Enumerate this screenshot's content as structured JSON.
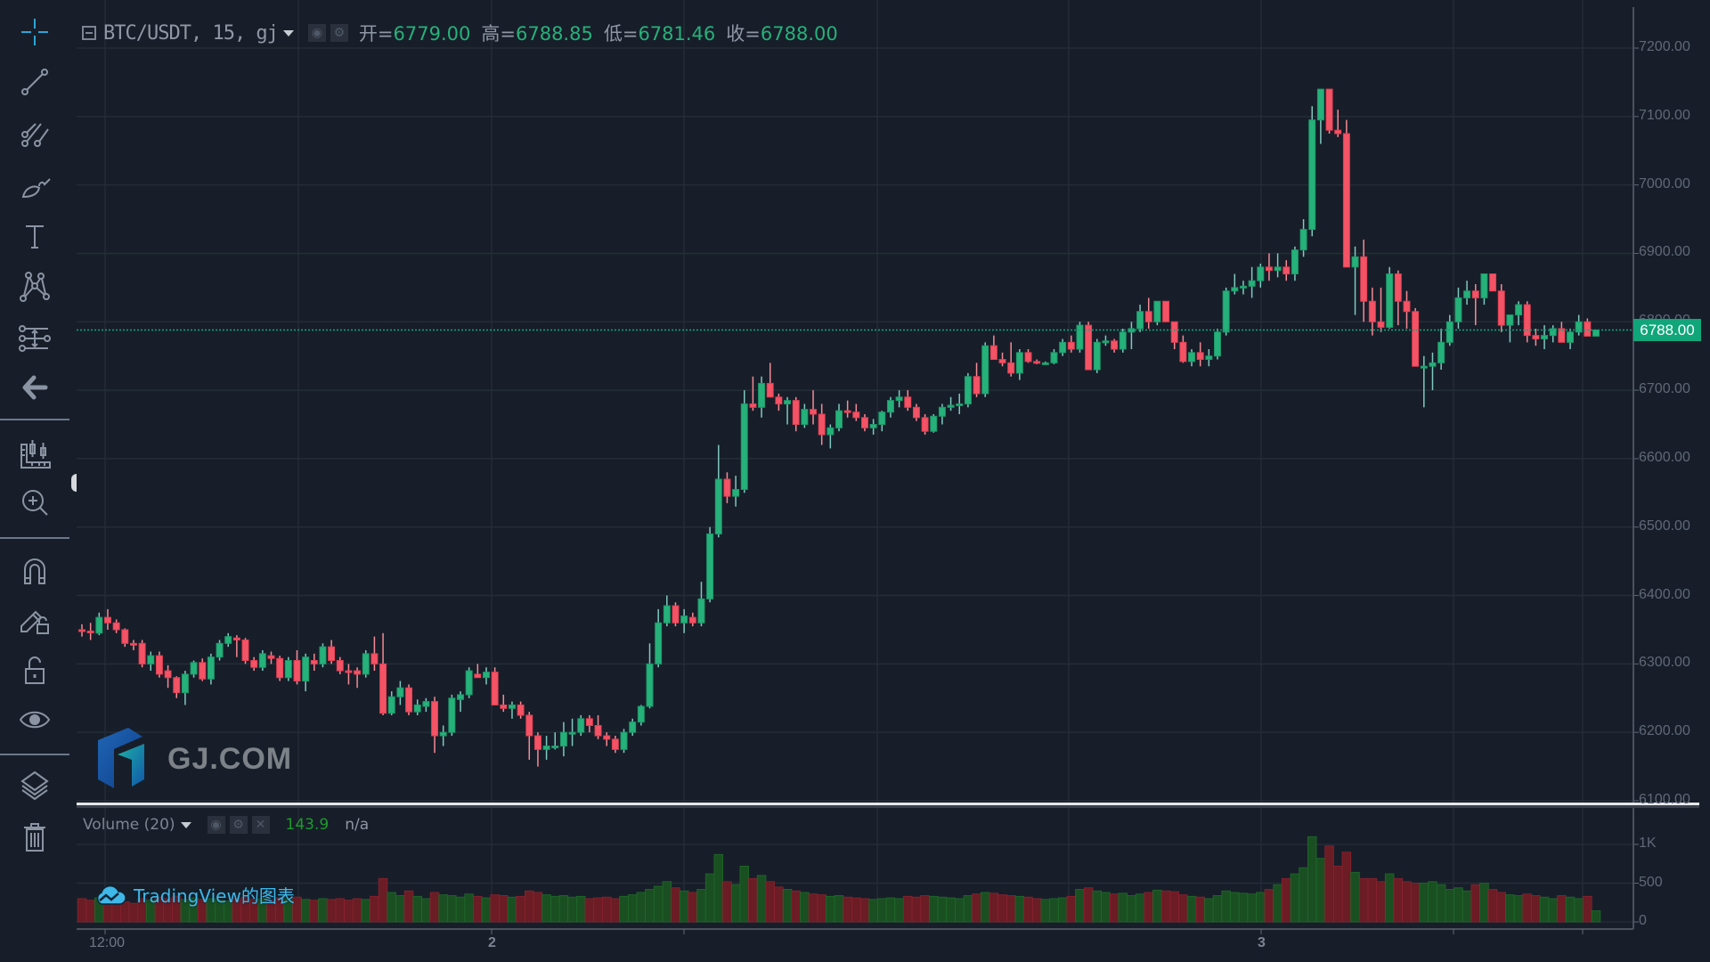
{
  "legend": {
    "symbol": "BTC/USDT, 15, gj",
    "ohlc": [
      {
        "key": "开=",
        "value": "6779.00"
      },
      {
        "key": "高=",
        "value": "6788.85"
      },
      {
        "key": "低=",
        "value": "6781.46"
      },
      {
        "key": "收=",
        "value": "6788.00"
      }
    ]
  },
  "volume_legend": {
    "name": "Volume (20)",
    "value": "143.9",
    "ma": "n/a"
  },
  "current_price": "6788.00",
  "watermarks": {
    "brand": "GJ.COM",
    "tradingview": "TradingView的图表"
  },
  "toolbar": {
    "items": [
      "crosshair",
      "trend-line",
      "pitchfork",
      "brush",
      "text",
      "pattern",
      "measure",
      "back-arrow",
      "chart-ruler",
      "zoom-in",
      "magnet",
      "lock-drawing",
      "unlock",
      "eye",
      "layers",
      "trash"
    ]
  },
  "colors": {
    "background": "#171e29",
    "up": "#26b17a",
    "down": "#f45366",
    "vol_up": "#1a4f22",
    "vol_down": "#6b1c24",
    "grid": "#252c38",
    "current_price": "#11a67a"
  },
  "chart_data": {
    "type": "candlestick",
    "title": "BTC/USDT, 15, gj",
    "price_axis": {
      "ticks": [
        "7200.00",
        "7100.00",
        "7000.00",
        "6900.00",
        "6800.00",
        "6700.00",
        "6600.00",
        "6500.00",
        "6400.00",
        "6300.00",
        "6200.00",
        "6100.00"
      ],
      "range": [
        6100,
        7200
      ]
    },
    "volume_axis": {
      "ticks": [
        "1K",
        "500",
        "0"
      ],
      "range": [
        0,
        1000
      ]
    },
    "time_axis": {
      "ticks": [
        "12:00",
        "2",
        "3"
      ]
    },
    "last": {
      "open": 6779.0,
      "high": 6788.85,
      "low": 6781.46,
      "close": 6788.0,
      "volume": 143.9
    },
    "candles": [
      [
        6350,
        6358,
        6340,
        6348,
        300
      ],
      [
        6348,
        6360,
        6335,
        6347,
        280
      ],
      [
        6345,
        6375,
        6342,
        6368,
        310
      ],
      [
        6368,
        6380,
        6350,
        6360,
        330
      ],
      [
        6360,
        6365,
        6345,
        6350,
        290
      ],
      [
        6350,
        6352,
        6325,
        6330,
        260
      ],
      [
        6330,
        6335,
        6320,
        6328,
        240
      ],
      [
        6330,
        6335,
        6295,
        6300,
        300
      ],
      [
        6300,
        6318,
        6290,
        6312,
        280
      ],
      [
        6312,
        6318,
        6280,
        6285,
        320
      ],
      [
        6290,
        6298,
        6265,
        6280,
        300
      ],
      [
        6280,
        6282,
        6250,
        6258,
        330
      ],
      [
        6258,
        6290,
        6240,
        6285,
        290
      ],
      [
        6285,
        6305,
        6280,
        6302,
        310
      ],
      [
        6302,
        6308,
        6275,
        6278,
        290
      ],
      [
        6278,
        6315,
        6270,
        6310,
        300
      ],
      [
        6310,
        6335,
        6305,
        6330,
        280
      ],
      [
        6330,
        6345,
        6325,
        6340,
        270
      ],
      [
        6338,
        6342,
        6310,
        6335,
        300
      ],
      [
        6335,
        6338,
        6300,
        6305,
        320
      ],
      [
        6305,
        6310,
        6290,
        6295,
        290
      ],
      [
        6295,
        6320,
        6290,
        6315,
        300
      ],
      [
        6312,
        6318,
        6300,
        6308,
        280
      ],
      [
        6308,
        6312,
        6275,
        6280,
        310
      ],
      [
        6280,
        6310,
        6275,
        6305,
        300
      ],
      [
        6305,
        6320,
        6270,
        6275,
        320
      ],
      [
        6275,
        6315,
        6260,
        6310,
        290
      ],
      [
        6305,
        6315,
        6290,
        6300,
        280
      ],
      [
        6300,
        6330,
        6295,
        6325,
        300
      ],
      [
        6325,
        6335,
        6300,
        6305,
        290
      ],
      [
        6305,
        6310,
        6285,
        6290,
        300
      ],
      [
        6290,
        6300,
        6270,
        6288,
        280
      ],
      [
        6290,
        6295,
        6265,
        6285,
        300
      ],
      [
        6285,
        6320,
        6280,
        6315,
        290
      ],
      [
        6315,
        6340,
        6290,
        6300,
        330
      ],
      [
        6300,
        6345,
        6225,
        6228,
        560
      ],
      [
        6228,
        6260,
        6225,
        6252,
        380
      ],
      [
        6252,
        6275,
        6240,
        6265,
        340
      ],
      [
        6265,
        6270,
        6225,
        6230,
        400
      ],
      [
        6230,
        6248,
        6225,
        6240,
        330
      ],
      [
        6238,
        6250,
        6230,
        6245,
        300
      ],
      [
        6245,
        6252,
        6170,
        6195,
        380
      ],
      [
        6195,
        6210,
        6180,
        6200,
        350
      ],
      [
        6200,
        6255,
        6195,
        6250,
        340
      ],
      [
        6248,
        6260,
        6230,
        6255,
        320
      ],
      [
        6255,
        6295,
        6250,
        6290,
        360
      ],
      [
        6285,
        6300,
        6280,
        6280,
        330
      ],
      [
        6280,
        6295,
        6270,
        6288,
        310
      ],
      [
        6288,
        6295,
        6240,
        6240,
        350
      ],
      [
        6240,
        6255,
        6230,
        6235,
        340
      ],
      [
        6235,
        6245,
        6220,
        6240,
        320
      ],
      [
        6240,
        6245,
        6220,
        6225,
        330
      ],
      [
        6225,
        6230,
        6160,
        6195,
        400
      ],
      [
        6195,
        6200,
        6150,
        6175,
        380
      ],
      [
        6175,
        6195,
        6160,
        6180,
        350
      ],
      [
        6180,
        6200,
        6175,
        6180,
        330
      ],
      [
        6180,
        6215,
        6165,
        6200,
        340
      ],
      [
        6200,
        6220,
        6180,
        6200,
        320
      ],
      [
        6200,
        6225,
        6195,
        6220,
        330
      ],
      [
        6220,
        6225,
        6200,
        6210,
        300
      ],
      [
        6210,
        6225,
        6190,
        6195,
        310
      ],
      [
        6195,
        6200,
        6180,
        6190,
        320
      ],
      [
        6190,
        6195,
        6170,
        6175,
        300
      ],
      [
        6175,
        6205,
        6170,
        6200,
        330
      ],
      [
        6200,
        6220,
        6195,
        6215,
        350
      ],
      [
        6215,
        6240,
        6210,
        6238,
        380
      ],
      [
        6238,
        6330,
        6235,
        6300,
        420
      ],
      [
        6300,
        6380,
        6295,
        6360,
        460
      ],
      [
        6360,
        6400,
        6355,
        6385,
        520
      ],
      [
        6385,
        6390,
        6355,
        6360,
        440
      ],
      [
        6360,
        6380,
        6345,
        6370,
        400
      ],
      [
        6368,
        6375,
        6355,
        6360,
        380
      ],
      [
        6360,
        6420,
        6355,
        6395,
        420
      ],
      [
        6395,
        6500,
        6390,
        6490,
        620
      ],
      [
        6490,
        6620,
        6485,
        6570,
        870
      ],
      [
        6570,
        6580,
        6535,
        6545,
        520
      ],
      [
        6545,
        6575,
        6530,
        6555,
        480
      ],
      [
        6555,
        6700,
        6550,
        6680,
        720
      ],
      [
        6680,
        6720,
        6670,
        6675,
        560
      ],
      [
        6675,
        6720,
        6660,
        6710,
        600
      ],
      [
        6710,
        6740,
        6700,
        6690,
        520
      ],
      [
        6690,
        6695,
        6670,
        6680,
        450
      ],
      [
        6680,
        6690,
        6650,
        6685,
        420
      ],
      [
        6685,
        6690,
        6640,
        6650,
        400
      ],
      [
        6650,
        6680,
        6645,
        6672,
        380
      ],
      [
        6672,
        6700,
        6650,
        6665,
        360
      ],
      [
        6665,
        6680,
        6620,
        6635,
        350
      ],
      [
        6635,
        6650,
        6615,
        6645,
        330
      ],
      [
        6645,
        6680,
        6640,
        6670,
        340
      ],
      [
        6670,
        6685,
        6660,
        6668,
        320
      ],
      [
        6668,
        6680,
        6655,
        6660,
        310
      ],
      [
        6660,
        6665,
        6640,
        6645,
        300
      ],
      [
        6645,
        6658,
        6635,
        6650,
        290
      ],
      [
        6650,
        6670,
        6640,
        6668,
        300
      ],
      [
        6668,
        6690,
        6660,
        6685,
        310
      ],
      [
        6685,
        6700,
        6675,
        6690,
        300
      ],
      [
        6690,
        6700,
        6670,
        6675,
        330
      ],
      [
        6675,
        6680,
        6655,
        6660,
        320
      ],
      [
        6660,
        6665,
        6635,
        6640,
        340
      ],
      [
        6640,
        6665,
        6638,
        6662,
        330
      ],
      [
        6662,
        6680,
        6650,
        6675,
        320
      ],
      [
        6675,
        6690,
        6670,
        6678,
        310
      ],
      [
        6678,
        6695,
        6665,
        6680,
        300
      ],
      [
        6680,
        6725,
        6675,
        6720,
        340
      ],
      [
        6720,
        6740,
        6690,
        6695,
        360
      ],
      [
        6695,
        6770,
        6690,
        6765,
        380
      ],
      [
        6765,
        6780,
        6745,
        6745,
        370
      ],
      [
        6745,
        6755,
        6735,
        6740,
        350
      ],
      [
        6740,
        6770,
        6720,
        6725,
        340
      ],
      [
        6725,
        6760,
        6715,
        6755,
        330
      ],
      [
        6755,
        6760,
        6740,
        6742,
        320
      ],
      [
        6742,
        6745,
        6738,
        6740,
        300
      ],
      [
        6740,
        6742,
        6738,
        6740,
        290
      ],
      [
        6740,
        6760,
        6738,
        6755,
        300
      ],
      [
        6755,
        6775,
        6750,
        6770,
        310
      ],
      [
        6770,
        6780,
        6755,
        6760,
        330
      ],
      [
        6760,
        6800,
        6755,
        6795,
        420
      ],
      [
        6795,
        6800,
        6730,
        6730,
        440
      ],
      [
        6730,
        6775,
        6725,
        6770,
        400
      ],
      [
        6770,
        6780,
        6765,
        6772,
        380
      ],
      [
        6772,
        6775,
        6755,
        6760,
        360
      ],
      [
        6760,
        6790,
        6755,
        6785,
        370
      ],
      [
        6785,
        6800,
        6760,
        6790,
        340
      ],
      [
        6790,
        6825,
        6785,
        6815,
        360
      ],
      [
        6815,
        6835,
        6790,
        6800,
        380
      ],
      [
        6800,
        6830,
        6795,
        6830,
        410
      ],
      [
        6830,
        6825,
        6800,
        6800,
        400
      ],
      [
        6800,
        6790,
        6760,
        6770,
        390
      ],
      [
        6770,
        6780,
        6740,
        6742,
        350
      ],
      [
        6742,
        6760,
        6735,
        6755,
        330
      ],
      [
        6755,
        6770,
        6735,
        6745,
        320
      ],
      [
        6745,
        6760,
        6735,
        6750,
        300
      ],
      [
        6750,
        6790,
        6745,
        6785,
        340
      ],
      [
        6785,
        6850,
        6780,
        6845,
        400
      ],
      [
        6845,
        6870,
        6840,
        6850,
        380
      ],
      [
        6850,
        6860,
        6840,
        6852,
        370
      ],
      [
        6852,
        6880,
        6835,
        6860,
        360
      ],
      [
        6860,
        6885,
        6850,
        6880,
        380
      ],
      [
        6880,
        6900,
        6860,
        6875,
        420
      ],
      [
        6875,
        6900,
        6865,
        6880,
        480
      ],
      [
        6880,
        6890,
        6860,
        6870,
        560
      ],
      [
        6870,
        6910,
        6860,
        6905,
        620
      ],
      [
        6905,
        6950,
        6895,
        6935,
        700
      ],
      [
        6935,
        7115,
        6925,
        7095,
        1100
      ],
      [
        7095,
        7135,
        7060,
        7140,
        820
      ],
      [
        7140,
        7140,
        7075,
        7080,
        980
      ],
      [
        7080,
        7110,
        7070,
        7075,
        720
      ],
      [
        7075,
        7095,
        6885,
        6880,
        900
      ],
      [
        6880,
        6910,
        6810,
        6895,
        640
      ],
      [
        6895,
        6920,
        6800,
        6830,
        560
      ],
      [
        6830,
        6850,
        6780,
        6800,
        560
      ],
      [
        6800,
        6850,
        6785,
        6792,
        520
      ],
      [
        6792,
        6880,
        6790,
        6870,
        620
      ],
      [
        6870,
        6875,
        6795,
        6830,
        560
      ],
      [
        6830,
        6845,
        6790,
        6815,
        520
      ],
      [
        6815,
        6820,
        6740,
        6735,
        500
      ],
      [
        6735,
        6750,
        6675,
        6735,
        500
      ],
      [
        6735,
        6755,
        6700,
        6740,
        520
      ],
      [
        6740,
        6790,
        6730,
        6770,
        480
      ],
      [
        6770,
        6810,
        6765,
        6800,
        420
      ],
      [
        6800,
        6850,
        6790,
        6835,
        440
      ],
      [
        6835,
        6860,
        6825,
        6845,
        400
      ],
      [
        6845,
        6855,
        6795,
        6835,
        480
      ],
      [
        6835,
        6870,
        6825,
        6870,
        500
      ],
      [
        6870,
        6865,
        6845,
        6845,
        420
      ],
      [
        6845,
        6855,
        6785,
        6795,
        380
      ],
      [
        6795,
        6810,
        6770,
        6810,
        350
      ],
      [
        6810,
        6830,
        6795,
        6825,
        340
      ],
      [
        6825,
        6830,
        6770,
        6780,
        360
      ],
      [
        6780,
        6790,
        6765,
        6775,
        340
      ],
      [
        6775,
        6795,
        6760,
        6780,
        320
      ],
      [
        6780,
        6795,
        6770,
        6790,
        300
      ],
      [
        6790,
        6800,
        6775,
        6770,
        340
      ],
      [
        6770,
        6790,
        6760,
        6785,
        320
      ],
      [
        6785,
        6810,
        6780,
        6800,
        300
      ],
      [
        6800,
        6805,
        6780,
        6779,
        330
      ],
      [
        6779,
        6788.85,
        6781.46,
        6788,
        143.9
      ]
    ]
  }
}
